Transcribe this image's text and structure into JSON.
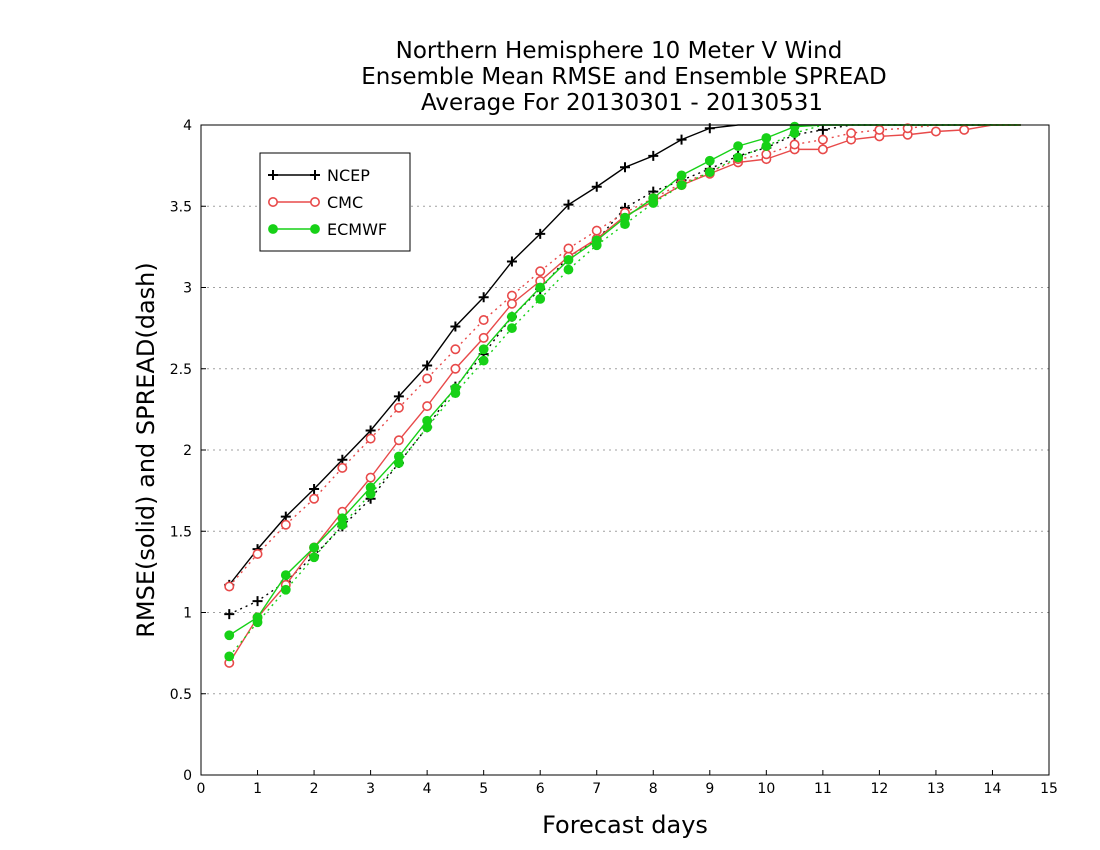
{
  "chart_data": {
    "type": "line",
    "title_lines": [
      "Northern Hemisphere 10 Meter V Wind",
      "Ensemble Mean RMSE and Ensemble SPREAD",
      "Average For 20130301 - 20130531"
    ],
    "xlabel": "Forecast days",
    "ylabel": "RMSE(solid) and SPREAD(dash)",
    "xlim": [
      0,
      15
    ],
    "ylim": [
      0,
      4
    ],
    "x_ticks": [
      "0",
      "1",
      "2",
      "3",
      "4",
      "5",
      "6",
      "7",
      "8",
      "9",
      "10",
      "11",
      "12",
      "13",
      "14",
      "15"
    ],
    "y_ticks": [
      "0",
      "0.5",
      "1",
      "1.5",
      "2",
      "2.5",
      "3",
      "3.5",
      "4"
    ],
    "grid": "horizontal dotted",
    "legend_position": "top-left",
    "legend": [
      "NCEP",
      "CMC",
      "ECMWF"
    ],
    "x": [
      0.5,
      1,
      1.5,
      2,
      2.5,
      3,
      3.5,
      4,
      4.5,
      5,
      5.5,
      6,
      6.5,
      7,
      7.5,
      8,
      8.5,
      9,
      9.5,
      10,
      10.5,
      11,
      11.5,
      12,
      12.5,
      13,
      13.5,
      14,
      14.5
    ],
    "series": [
      {
        "name": "NCEP",
        "measure": "RMSE",
        "style": "solid",
        "color": "#000000",
        "marker": "plus",
        "values": [
          1.17,
          1.39,
          1.59,
          1.76,
          1.94,
          2.12,
          2.33,
          2.52,
          2.76,
          2.94,
          3.16,
          3.33,
          3.51,
          3.62,
          3.74,
          3.81,
          3.91,
          3.98,
          4.0,
          4.0,
          4.0,
          4.0,
          4.0,
          4.0,
          4.0,
          4.0,
          4.0,
          4.0,
          4.0
        ]
      },
      {
        "name": "NCEP",
        "measure": "SPREAD",
        "style": "dashed",
        "color": "#000000",
        "marker": "plus",
        "values": [
          0.99,
          1.07,
          1.19,
          1.35,
          1.53,
          1.7,
          1.92,
          2.14,
          2.39,
          2.59,
          2.82,
          2.99,
          3.19,
          3.29,
          3.49,
          3.59,
          3.66,
          3.73,
          3.81,
          3.86,
          3.94,
          3.97,
          4.0,
          4.0,
          4.0,
          4.0,
          4.0,
          4.0,
          4.0
        ]
      },
      {
        "name": "CMC",
        "measure": "RMSE",
        "style": "solid",
        "color": "#e84a4a",
        "marker": "open-circle",
        "values": [
          0.69,
          0.97,
          1.17,
          1.4,
          1.62,
          1.83,
          2.06,
          2.27,
          2.5,
          2.69,
          2.9,
          3.04,
          3.19,
          3.3,
          3.44,
          3.53,
          3.63,
          3.7,
          3.77,
          3.79,
          3.85,
          3.85,
          3.91,
          3.93,
          3.94,
          3.96,
          3.97,
          4.0,
          4.0
        ]
      },
      {
        "name": "CMC",
        "measure": "SPREAD",
        "style": "dashed",
        "color": "#e84a4a",
        "marker": "open-circle",
        "values": [
          1.16,
          1.36,
          1.54,
          1.7,
          1.89,
          2.07,
          2.26,
          2.44,
          2.62,
          2.8,
          2.95,
          3.1,
          3.24,
          3.35,
          3.46,
          3.55,
          3.64,
          3.71,
          3.79,
          3.82,
          3.88,
          3.91,
          3.95,
          3.97,
          3.98,
          4.0,
          4.0,
          4.0,
          4.0
        ]
      },
      {
        "name": "ECMWF",
        "measure": "RMSE",
        "style": "solid",
        "color": "#17d117",
        "marker": "filled-circle",
        "values": [
          0.86,
          0.97,
          1.23,
          1.4,
          1.58,
          1.77,
          1.96,
          2.18,
          2.38,
          2.62,
          2.82,
          3.0,
          3.17,
          3.29,
          3.43,
          3.55,
          3.69,
          3.78,
          3.87,
          3.92,
          3.99,
          4.0,
          4.0,
          4.0,
          4.0,
          4.0,
          4.0,
          4.0,
          4.0
        ]
      },
      {
        "name": "ECMWF",
        "measure": "SPREAD",
        "style": "dashed",
        "color": "#17d117",
        "marker": "filled-circle",
        "values": [
          0.73,
          0.94,
          1.14,
          1.34,
          1.54,
          1.73,
          1.92,
          2.14,
          2.35,
          2.55,
          2.75,
          2.93,
          3.11,
          3.26,
          3.39,
          3.52,
          3.63,
          3.71,
          3.8,
          3.87,
          3.95,
          4.0,
          4.0,
          4.0,
          4.0,
          4.0,
          4.0,
          4.0,
          4.0
        ]
      }
    ]
  }
}
